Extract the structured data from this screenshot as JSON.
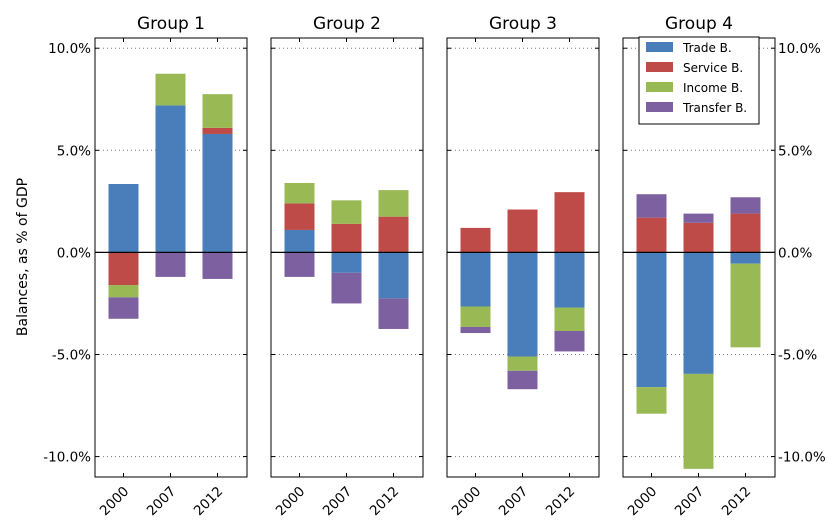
{
  "chart_data": {
    "type": "bar",
    "stacked": true,
    "ylabel": "Balances, as % of GDP",
    "ylim": [
      -11.0,
      10.5
    ],
    "yticks": [
      10.0,
      5.0,
      0.0,
      -5.0,
      -10.0
    ],
    "ytick_labels": [
      "10.0%",
      "5.0%",
      "0.0%",
      "-5.0%",
      "-10.0%"
    ],
    "grid": "horizontal dotted",
    "zero_line": true,
    "legend": {
      "placement": "top-right of Group 4",
      "entries": [
        "Trade B.",
        "Service B.",
        "Income B.",
        "Transfer B."
      ]
    },
    "colors": {
      "Trade B.": "#4a7ebb",
      "Service B.": "#be4b48",
      "Income B.": "#98b954",
      "Transfer B.": "#7d60a0"
    },
    "categories": [
      "2000",
      "2007",
      "2012"
    ],
    "panels": [
      {
        "title": "Group 1",
        "series": [
          {
            "name": "Trade B.",
            "values": [
              3.35,
              7.2,
              5.8
            ]
          },
          {
            "name": "Service B.",
            "values": [
              -1.6,
              0.0,
              0.3
            ]
          },
          {
            "name": "Income B.",
            "values": [
              -0.6,
              1.55,
              1.65
            ]
          },
          {
            "name": "Transfer B.",
            "values": [
              -1.05,
              -1.2,
              -1.3
            ]
          }
        ]
      },
      {
        "title": "Group 2",
        "series": [
          {
            "name": "Trade B.",
            "values": [
              1.1,
              -1.0,
              -2.25
            ]
          },
          {
            "name": "Service B.",
            "values": [
              1.3,
              1.4,
              1.75
            ]
          },
          {
            "name": "Income B.",
            "values": [
              1.0,
              1.15,
              1.3
            ]
          },
          {
            "name": "Transfer B.",
            "values": [
              -1.2,
              -1.5,
              -1.5
            ]
          }
        ]
      },
      {
        "title": "Group 3",
        "series": [
          {
            "name": "Trade B.",
            "values": [
              -2.65,
              -5.1,
              -2.7
            ]
          },
          {
            "name": "Service B.",
            "values": [
              1.2,
              2.1,
              2.95
            ]
          },
          {
            "name": "Income B.",
            "values": [
              -1.0,
              -0.7,
              -1.15
            ]
          },
          {
            "name": "Transfer B.",
            "values": [
              -0.3,
              -0.9,
              -1.0
            ]
          }
        ]
      },
      {
        "title": "Group 4",
        "series": [
          {
            "name": "Trade B.",
            "values": [
              -6.6,
              -5.95,
              -0.55
            ]
          },
          {
            "name": "Service B.",
            "values": [
              1.7,
              1.45,
              1.9
            ]
          },
          {
            "name": "Income B.",
            "values": [
              -1.3,
              -4.65,
              -4.1
            ]
          },
          {
            "name": "Transfer B.",
            "values": [
              1.15,
              0.45,
              0.8
            ]
          }
        ]
      }
    ]
  }
}
